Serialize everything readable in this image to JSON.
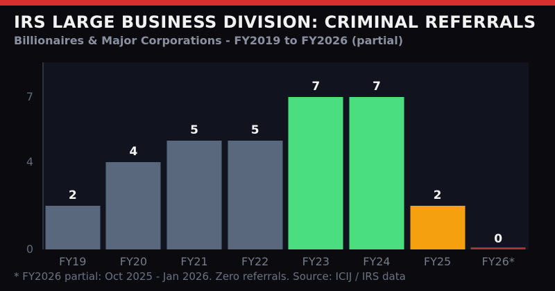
{
  "accent_color": "#d8302f",
  "header": {
    "title": "IRS LARGE BUSINESS DIVISION: CRIMINAL REFERRALS",
    "subtitle": "Billionaires & Major Corporations - FY2019 to FY2026 (partial)"
  },
  "footnote": "* FY2026 partial: Oct 2025 - Jan 2026. Zero referrals. Source: ICIJ / IRS data",
  "chart_data": {
    "type": "bar",
    "title": "IRS LARGE BUSINESS DIVISION: CRIMINAL REFERRALS",
    "subtitle": "Billionaires & Major Corporations - FY2019 to FY2026 (partial)",
    "categories": [
      "FY19",
      "FY20",
      "FY21",
      "FY22",
      "FY23",
      "FY24",
      "FY25",
      "FY26*"
    ],
    "values": [
      2,
      4,
      5,
      5,
      7,
      7,
      2,
      0
    ],
    "value_labels": [
      "2",
      "4",
      "5",
      "5",
      "7",
      "7",
      "2",
      "0"
    ],
    "bar_colors": [
      "#59687c",
      "#59687c",
      "#59687c",
      "#59687c",
      "#4ade80",
      "#4ade80",
      "#f5a00f",
      "#a93232"
    ],
    "zero_marker_color": "#a93232",
    "xlabel": "",
    "ylabel": "",
    "yticks": [
      "0",
      "4",
      "7"
    ],
    "ytick_values": [
      0,
      4,
      7
    ],
    "ylim": [
      0,
      8.6
    ],
    "grid": false,
    "legend": false,
    "plot_bg": "#11141f",
    "page_bg": "#0a0a0f",
    "annotation": "* FY2026 partial: Oct 2025 - Jan 2026. Zero referrals. Source: ICIJ / IRS data"
  }
}
